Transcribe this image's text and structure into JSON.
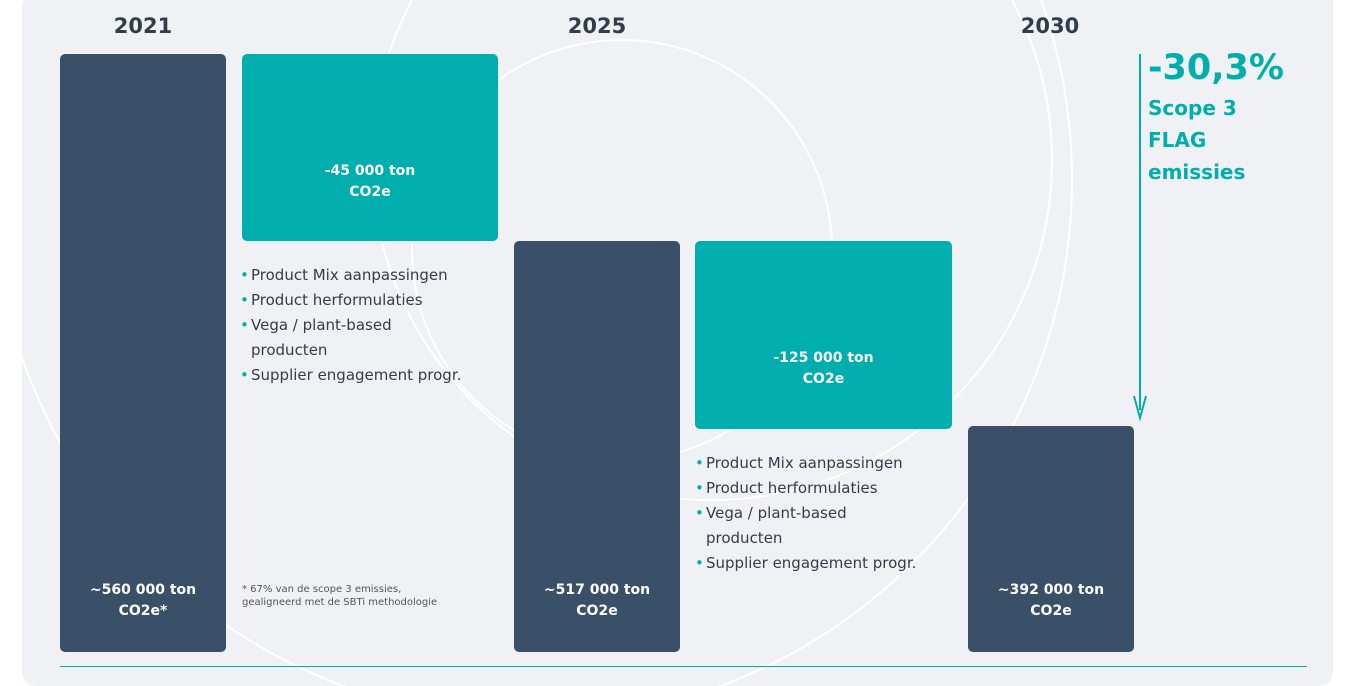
{
  "columns": [
    {
      "year": "2021"
    },
    {
      "year": "2025"
    },
    {
      "year": "2030"
    }
  ],
  "bars": [
    {
      "lines": [
        "~560 000 ton",
        "CO2e*"
      ]
    },
    {
      "lines": [
        "~517 000 ton",
        "CO2e"
      ]
    },
    {
      "lines": [
        "~392 000 ton",
        "CO2e"
      ]
    }
  ],
  "reductions": [
    {
      "lines": [
        "-45 000 ton",
        "CO2e"
      ],
      "bullets": [
        [
          "Product Mix aanpassingen"
        ],
        [
          "Product herformulaties"
        ],
        [
          "Vega / plant-based",
          "producten"
        ],
        [
          "Supplier engagement progr."
        ]
      ]
    },
    {
      "lines": [
        "-125 000 ton",
        "CO2e"
      ],
      "bullets": [
        [
          "Product Mix aanpassingen"
        ],
        [
          "Product herformulaties"
        ],
        [
          "Vega / plant-based",
          "producten"
        ],
        [
          "Supplier engagement progr."
        ]
      ]
    }
  ],
  "footnote": [
    "* 67% van de scope 3 emissies,",
    "gealigneerd met de SBTi methodologie"
  ],
  "total": {
    "value": "-30,3%",
    "lines": [
      "Scope 3",
      "FLAG",
      "emissies"
    ]
  }
}
